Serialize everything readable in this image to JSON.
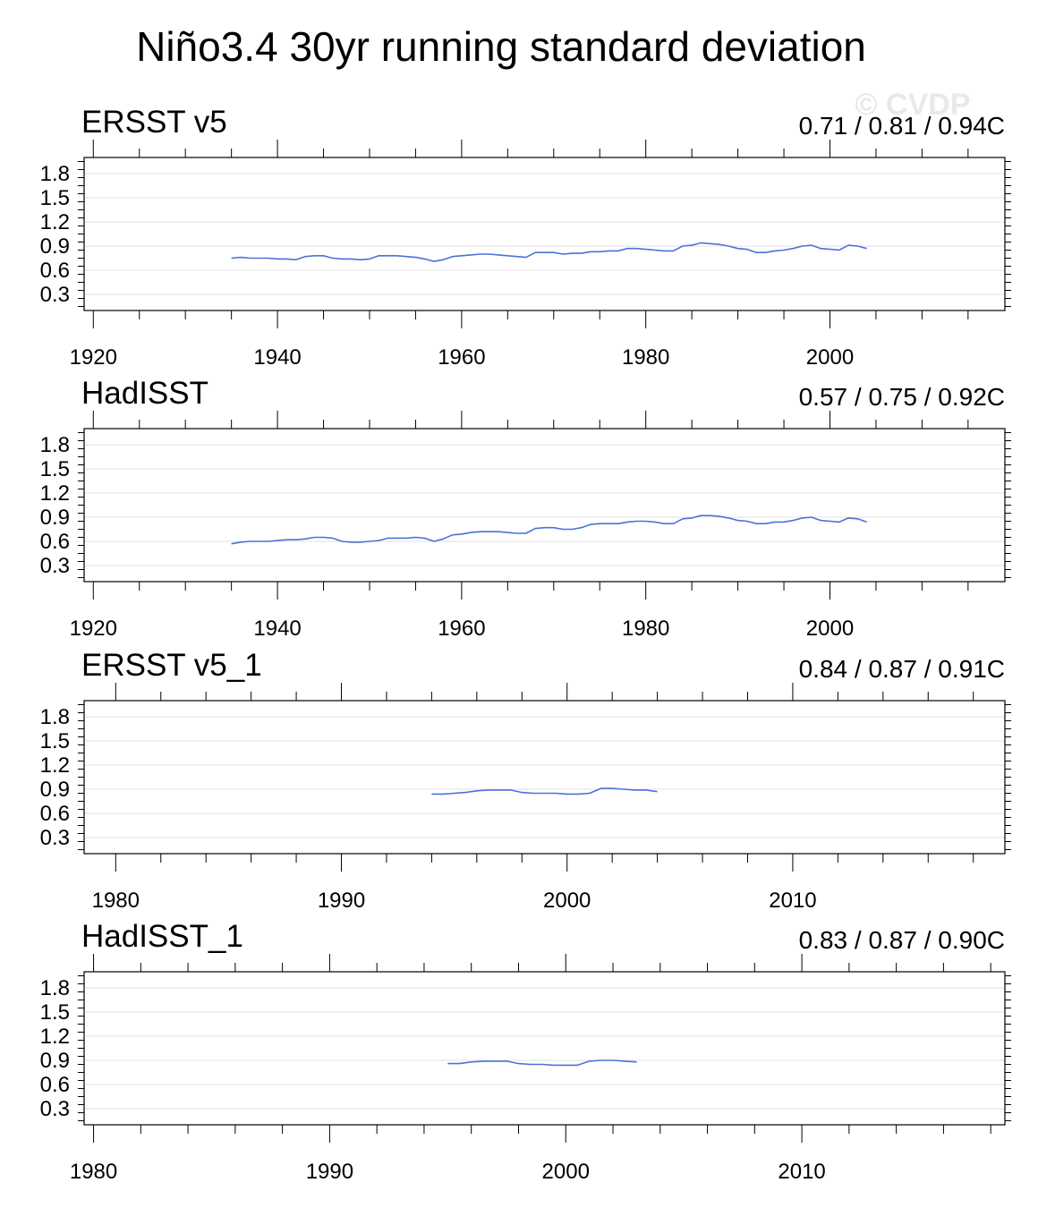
{
  "title": "Niño3.4 30yr running standard deviation",
  "watermark": "© CVDP",
  "line_color": "#4a72d8",
  "chart_data": [
    {
      "type": "line",
      "name": "ERSST v5",
      "stats": "0.71 / 0.81 / 0.94C",
      "xlim": [
        1919,
        2019
      ],
      "x_major_ticks": [
        1920,
        1940,
        1960,
        1980,
        2000
      ],
      "x_minor_step": 5,
      "ylim": [
        0.1,
        2.0
      ],
      "y_ticks": [
        0.3,
        0.6,
        0.9,
        1.2,
        1.5,
        1.8
      ],
      "y_tick_labels": [
        "0.3",
        "0.6",
        "0.9",
        "1.2",
        "1.5",
        "1.8"
      ],
      "x": [
        1935,
        1936,
        1937,
        1938,
        1939,
        1940,
        1941,
        1942,
        1943,
        1944,
        1945,
        1946,
        1947,
        1948,
        1949,
        1950,
        1951,
        1952,
        1953,
        1954,
        1955,
        1956,
        1957,
        1958,
        1959,
        1960,
        1961,
        1962,
        1963,
        1964,
        1965,
        1966,
        1967,
        1968,
        1969,
        1970,
        1971,
        1972,
        1973,
        1974,
        1975,
        1976,
        1977,
        1978,
        1979,
        1980,
        1981,
        1982,
        1983,
        1984,
        1985,
        1986,
        1987,
        1988,
        1989,
        1990,
        1991,
        1992,
        1993,
        1994,
        1995,
        1996,
        1997,
        1998,
        1999,
        2000,
        2001,
        2002,
        2003,
        2004
      ],
      "y": [
        0.75,
        0.76,
        0.75,
        0.75,
        0.75,
        0.74,
        0.74,
        0.73,
        0.77,
        0.78,
        0.78,
        0.75,
        0.74,
        0.74,
        0.73,
        0.74,
        0.78,
        0.78,
        0.78,
        0.77,
        0.76,
        0.74,
        0.71,
        0.73,
        0.77,
        0.78,
        0.79,
        0.8,
        0.8,
        0.79,
        0.78,
        0.77,
        0.76,
        0.82,
        0.82,
        0.82,
        0.8,
        0.81,
        0.81,
        0.83,
        0.83,
        0.84,
        0.84,
        0.87,
        0.87,
        0.86,
        0.85,
        0.84,
        0.84,
        0.9,
        0.91,
        0.94,
        0.93,
        0.92,
        0.9,
        0.87,
        0.86,
        0.82,
        0.82,
        0.84,
        0.85,
        0.87,
        0.9,
        0.91,
        0.87,
        0.86,
        0.85,
        0.91,
        0.9,
        0.87
      ]
    },
    {
      "type": "line",
      "name": "HadISST",
      "stats": "0.57 / 0.75 / 0.92C",
      "xlim": [
        1919,
        2019
      ],
      "x_major_ticks": [
        1920,
        1940,
        1960,
        1980,
        2000
      ],
      "x_minor_step": 5,
      "ylim": [
        0.1,
        2.0
      ],
      "y_ticks": [
        0.3,
        0.6,
        0.9,
        1.2,
        1.5,
        1.8
      ],
      "y_tick_labels": [
        "0.3",
        "0.6",
        "0.9",
        "1.2",
        "1.5",
        "1.8"
      ],
      "x": [
        1935,
        1936,
        1937,
        1938,
        1939,
        1940,
        1941,
        1942,
        1943,
        1944,
        1945,
        1946,
        1947,
        1948,
        1949,
        1950,
        1951,
        1952,
        1953,
        1954,
        1955,
        1956,
        1957,
        1958,
        1959,
        1960,
        1961,
        1962,
        1963,
        1964,
        1965,
        1966,
        1967,
        1968,
        1969,
        1970,
        1971,
        1972,
        1973,
        1974,
        1975,
        1976,
        1977,
        1978,
        1979,
        1980,
        1981,
        1982,
        1983,
        1984,
        1985,
        1986,
        1987,
        1988,
        1989,
        1990,
        1991,
        1992,
        1993,
        1994,
        1995,
        1996,
        1997,
        1998,
        1999,
        2000,
        2001,
        2002,
        2003,
        2004
      ],
      "y": [
        0.57,
        0.59,
        0.6,
        0.6,
        0.6,
        0.61,
        0.62,
        0.62,
        0.63,
        0.65,
        0.65,
        0.64,
        0.6,
        0.59,
        0.59,
        0.6,
        0.61,
        0.64,
        0.64,
        0.64,
        0.65,
        0.64,
        0.6,
        0.63,
        0.68,
        0.69,
        0.71,
        0.72,
        0.72,
        0.72,
        0.71,
        0.7,
        0.7,
        0.76,
        0.77,
        0.77,
        0.75,
        0.75,
        0.77,
        0.81,
        0.82,
        0.82,
        0.82,
        0.84,
        0.85,
        0.85,
        0.84,
        0.82,
        0.82,
        0.88,
        0.89,
        0.92,
        0.92,
        0.91,
        0.89,
        0.86,
        0.85,
        0.82,
        0.82,
        0.84,
        0.84,
        0.86,
        0.89,
        0.9,
        0.86,
        0.85,
        0.84,
        0.89,
        0.88,
        0.84
      ]
    },
    {
      "type": "line",
      "name": "ERSST v5_1",
      "stats": "0.84 / 0.87 / 0.91C",
      "xlim": [
        1978.6,
        2019.4
      ],
      "x_major_ticks": [
        1980,
        1990,
        2000,
        2010
      ],
      "x_minor_step": 2,
      "ylim": [
        0.1,
        2.0
      ],
      "y_ticks": [
        0.3,
        0.6,
        0.9,
        1.2,
        1.5,
        1.8
      ],
      "y_tick_labels": [
        "0.3",
        "0.6",
        "0.9",
        "1.2",
        "1.5",
        "1.8"
      ],
      "x": [
        1994,
        1994.5,
        1995,
        1995.5,
        1996,
        1996.5,
        1997,
        1997.5,
        1998,
        1998.5,
        1999,
        1999.5,
        2000,
        2000.5,
        2001,
        2001.5,
        2002,
        2002.5,
        2003,
        2003.5,
        2004
      ],
      "y": [
        0.84,
        0.84,
        0.85,
        0.86,
        0.88,
        0.89,
        0.89,
        0.89,
        0.86,
        0.85,
        0.85,
        0.85,
        0.84,
        0.84,
        0.85,
        0.91,
        0.91,
        0.9,
        0.89,
        0.89,
        0.87
      ]
    },
    {
      "type": "line",
      "name": "HadISST_1",
      "stats": "0.83 / 0.87 / 0.90C",
      "xlim": [
        1979.6,
        2018.6
      ],
      "x_major_ticks": [
        1980,
        1990,
        2000,
        2010
      ],
      "x_minor_step": 2,
      "ylim": [
        0.1,
        2.0
      ],
      "y_ticks": [
        0.3,
        0.6,
        0.9,
        1.2,
        1.5,
        1.8
      ],
      "y_tick_labels": [
        "0.3",
        "0.6",
        "0.9",
        "1.2",
        "1.5",
        "1.8"
      ],
      "x": [
        1995,
        1995.5,
        1996,
        1996.5,
        1997,
        1997.5,
        1998,
        1998.5,
        1999,
        1999.5,
        2000,
        2000.5,
        2001,
        2001.5,
        2002,
        2002.5,
        2003
      ],
      "y": [
        0.86,
        0.86,
        0.88,
        0.89,
        0.89,
        0.89,
        0.86,
        0.85,
        0.85,
        0.84,
        0.84,
        0.84,
        0.89,
        0.9,
        0.9,
        0.89,
        0.88
      ]
    }
  ]
}
